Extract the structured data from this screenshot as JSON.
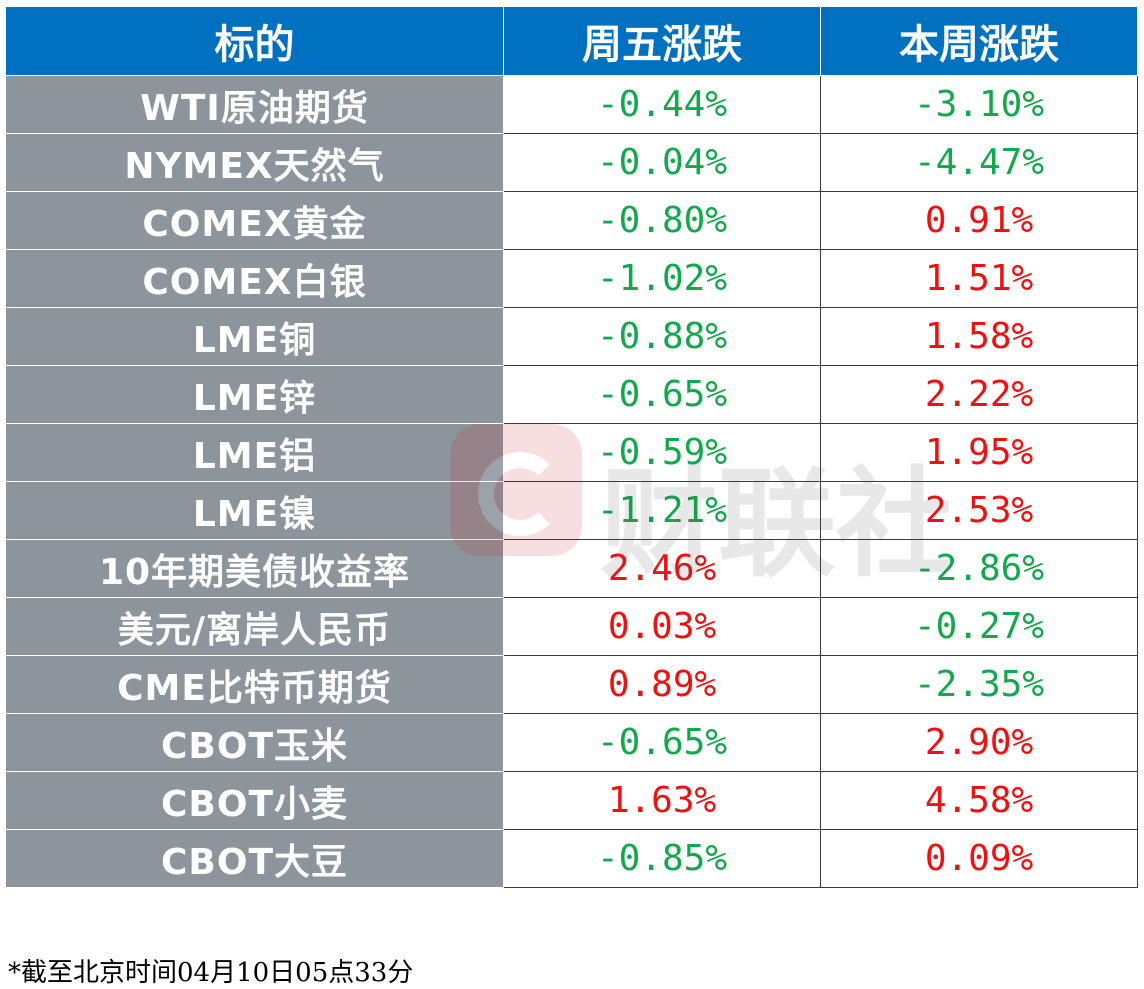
{
  "table": {
    "headers": [
      "标的",
      "周五涨跌",
      "本周涨跌"
    ],
    "rows": [
      {
        "name": "WTI原油期货",
        "fri": "-0.44%",
        "fri_dir": "down",
        "week": "-3.10%",
        "week_dir": "down"
      },
      {
        "name": "NYMEX天然气",
        "fri": "-0.04%",
        "fri_dir": "down",
        "week": "-4.47%",
        "week_dir": "down"
      },
      {
        "name": "COMEX黄金",
        "fri": "-0.80%",
        "fri_dir": "down",
        "week": "0.91%",
        "week_dir": "up"
      },
      {
        "name": "COMEX白银",
        "fri": "-1.02%",
        "fri_dir": "down",
        "week": "1.51%",
        "week_dir": "up"
      },
      {
        "name": "LME铜",
        "fri": "-0.88%",
        "fri_dir": "down",
        "week": "1.58%",
        "week_dir": "up"
      },
      {
        "name": "LME锌",
        "fri": "-0.65%",
        "fri_dir": "down",
        "week": "2.22%",
        "week_dir": "up"
      },
      {
        "name": "LME铝",
        "fri": "-0.59%",
        "fri_dir": "down",
        "week": "1.95%",
        "week_dir": "up"
      },
      {
        "name": "LME镍",
        "fri": "-1.21%",
        "fri_dir": "down",
        "week": "2.53%",
        "week_dir": "up"
      },
      {
        "name": "10年期美债收益率",
        "fri": "2.46%",
        "fri_dir": "up",
        "week": "-2.86%",
        "week_dir": "down"
      },
      {
        "name": "美元/离岸人民币",
        "fri": "0.03%",
        "fri_dir": "up",
        "week": "-0.27%",
        "week_dir": "down"
      },
      {
        "name": "CME比特币期货",
        "fri": "0.89%",
        "fri_dir": "up",
        "week": "-2.35%",
        "week_dir": "down"
      },
      {
        "name": "CBOT玉米",
        "fri": "-0.65%",
        "fri_dir": "down",
        "week": "2.90%",
        "week_dir": "up"
      },
      {
        "name": "CBOT小麦",
        "fri": "1.63%",
        "fri_dir": "up",
        "week": "4.58%",
        "week_dir": "up"
      },
      {
        "name": "CBOT大豆",
        "fri": "-0.85%",
        "fri_dir": "down",
        "week": "0.09%",
        "week_dir": "up"
      }
    ]
  },
  "footnote": "*截至北京时间04月10日05点33分",
  "watermark": {
    "text": "财联社",
    "logo_icon": "cls-logo-icon"
  },
  "colors": {
    "header_bg": "#0070c0",
    "name_bg": "#8c949c",
    "up": "#ee1111",
    "down": "#12a84c"
  }
}
